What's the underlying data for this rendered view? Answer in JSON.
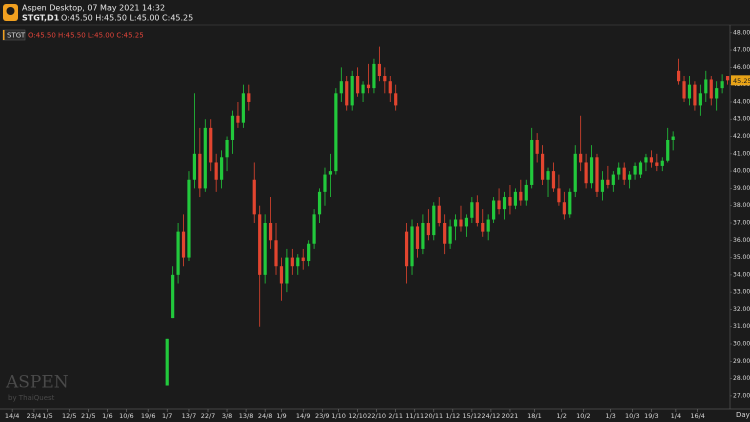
{
  "header": {
    "app": "Aspen Desktop, 07 May 2021 14:32",
    "symbol": "STGT,D1",
    "ohlc": "O:45.50 H:45.50 L:45.00 C:45.25"
  },
  "legend": {
    "symbol": "STGT",
    "ohlc": "O:45.50 H:45.50 L:45.00 C:45.25"
  },
  "watermark": {
    "title": "ASPEN",
    "subtitle": "by ThaiQuest"
  },
  "chart_data": {
    "type": "candlestick",
    "x_label": "Day",
    "up_color": "#22c93c",
    "down_color": "#e2452f",
    "xlim": [
      0,
      268
    ],
    "ylim": [
      26.3,
      48.45
    ],
    "yticks": [
      {
        "value": 27,
        "label": "27.00"
      },
      {
        "value": 28,
        "label": "28.00"
      },
      {
        "value": 29,
        "label": "29.00"
      },
      {
        "value": 30,
        "label": "30.00"
      },
      {
        "value": 31,
        "label": "31.00"
      },
      {
        "value": 32,
        "label": "32.00"
      },
      {
        "value": 33,
        "label": "33.00"
      },
      {
        "value": 34,
        "label": "34.00"
      },
      {
        "value": 35,
        "label": "35.00"
      },
      {
        "value": 36,
        "label": "36.00"
      },
      {
        "value": 37,
        "label": "37.00"
      },
      {
        "value": 38,
        "label": "38.00"
      },
      {
        "value": 39,
        "label": "39.00"
      },
      {
        "value": 40,
        "label": "40.00"
      },
      {
        "value": 41,
        "label": "41.00"
      },
      {
        "value": 42,
        "label": "42.00"
      },
      {
        "value": 43,
        "label": "43.00"
      },
      {
        "value": 44,
        "label": "44.00"
      },
      {
        "value": 45,
        "label": "45.00"
      },
      {
        "value": 46,
        "label": "46.00"
      },
      {
        "value": 47,
        "label": "47.00"
      },
      {
        "value": 48,
        "label": "48.00"
      }
    ],
    "xticks": [
      {
        "value": 3,
        "label": "14/4"
      },
      {
        "value": 11,
        "label": "23/4"
      },
      {
        "value": 16,
        "label": "1/5"
      },
      {
        "value": 24,
        "label": "12/5"
      },
      {
        "value": 31,
        "label": "21/5"
      },
      {
        "value": 38,
        "label": "1/6"
      },
      {
        "value": 45,
        "label": "10/6"
      },
      {
        "value": 53,
        "label": "19/6"
      },
      {
        "value": 60,
        "label": "1/7"
      },
      {
        "value": 68,
        "label": "13/7"
      },
      {
        "value": 75,
        "label": "22/7"
      },
      {
        "value": 82,
        "label": "3/8"
      },
      {
        "value": 89,
        "label": "13/8"
      },
      {
        "value": 96,
        "label": "24/8"
      },
      {
        "value": 102,
        "label": "1/9"
      },
      {
        "value": 110,
        "label": "14/9"
      },
      {
        "value": 117,
        "label": "23/9"
      },
      {
        "value": 123,
        "label": "1/10"
      },
      {
        "value": 130,
        "label": "12/10"
      },
      {
        "value": 137,
        "label": "22/10"
      },
      {
        "value": 144,
        "label": "2/11"
      },
      {
        "value": 151,
        "label": "11/11"
      },
      {
        "value": 158,
        "label": "20/11"
      },
      {
        "value": 165,
        "label": "1/12"
      },
      {
        "value": 172,
        "label": "15/12"
      },
      {
        "value": 179,
        "label": "24/12"
      },
      {
        "value": 186,
        "label": "2021"
      },
      {
        "value": 195,
        "label": "18/1"
      },
      {
        "value": 205,
        "label": "1/2"
      },
      {
        "value": 213,
        "label": "10/2"
      },
      {
        "value": 223,
        "label": "1/3"
      },
      {
        "value": 231,
        "label": "10/3"
      },
      {
        "value": 238,
        "label": "19/3"
      },
      {
        "value": 247,
        "label": "1/4"
      },
      {
        "value": 255,
        "label": "16/4"
      }
    ],
    "x": [
      60,
      62,
      64,
      66,
      68,
      70,
      72,
      74,
      76,
      78,
      80,
      82,
      84,
      86,
      88,
      90,
      92,
      94,
      96,
      98,
      100,
      102,
      104,
      106,
      108,
      110,
      112,
      114,
      116,
      118,
      120,
      122,
      124,
      126,
      128,
      130,
      132,
      134,
      136,
      138,
      140,
      142,
      144,
      148,
      150,
      152,
      154,
      156,
      158,
      160,
      162,
      164,
      166,
      168,
      170,
      172,
      174,
      176,
      178,
      180,
      182,
      184,
      186,
      188,
      190,
      192,
      194,
      196,
      198,
      200,
      202,
      204,
      206,
      208,
      210,
      212,
      214,
      216,
      218,
      220,
      222,
      224,
      226,
      228,
      230,
      232,
      234,
      236,
      238,
      240,
      242,
      244,
      246,
      248,
      250,
      252,
      254,
      256,
      258,
      260,
      262,
      264,
      266
    ],
    "open": [
      27.6,
      31.5,
      34.0,
      36.5,
      35.0,
      39.5,
      41.0,
      39.0,
      42.5,
      40.5,
      39.5,
      40.8,
      41.8,
      43.2,
      42.8,
      44.5,
      39.5,
      37.5,
      34.0,
      37.0,
      36.0,
      34.5,
      33.5,
      35.0,
      34.5,
      35.0,
      34.8,
      35.8,
      37.5,
      38.8,
      39.8,
      40.0,
      44.5,
      45.2,
      43.8,
      45.5,
      44.5,
      45.0,
      44.8,
      46.2,
      45.5,
      45.2,
      44.5,
      36.5,
      34.5,
      36.8,
      35.5,
      37.0,
      36.3,
      38.0,
      37.0,
      35.8,
      36.8,
      37.2,
      36.8,
      37.3,
      38.2,
      37.0,
      36.5,
      37.2,
      38.3,
      37.8,
      38.5,
      38.0,
      38.8,
      38.3,
      39.2,
      41.8,
      41.0,
      39.5,
      40.0,
      39.0,
      38.2,
      37.5,
      38.8,
      41.0,
      40.5,
      39.3,
      40.8,
      38.8,
      39.5,
      39.2,
      39.8,
      40.2,
      39.5,
      39.8,
      39.8,
      40.5,
      40.8,
      40.5,
      40.3,
      40.6,
      41.8,
      45.8,
      45.2,
      44.2,
      45.0,
      43.8,
      44.5,
      45.3,
      44.2,
      44.8,
      45.5
    ],
    "high": [
      30.3,
      34.5,
      37.0,
      37.5,
      40.0,
      44.5,
      42.5,
      43.0,
      43.0,
      41.0,
      41.2,
      42.0,
      43.5,
      44.0,
      45.0,
      45.0,
      40.5,
      38.0,
      37.5,
      38.5,
      37.0,
      35.0,
      35.5,
      35.5,
      35.2,
      35.5,
      36.0,
      37.8,
      39.0,
      40.2,
      41.0,
      44.8,
      46.0,
      45.5,
      45.8,
      46.0,
      45.2,
      46.2,
      46.5,
      47.2,
      46.0,
      45.5,
      45.0,
      37.0,
      37.2,
      37.0,
      37.5,
      37.8,
      38.2,
      38.5,
      37.5,
      37.2,
      37.5,
      38.0,
      37.5,
      38.5,
      38.6,
      37.8,
      37.5,
      38.5,
      39.0,
      38.8,
      39.2,
      39.0,
      39.5,
      39.5,
      42.5,
      42.2,
      41.5,
      40.2,
      40.5,
      39.8,
      38.8,
      39.0,
      41.5,
      43.2,
      41.0,
      41.5,
      41.0,
      40.0,
      40.3,
      40.0,
      40.5,
      40.5,
      40.0,
      40.5,
      40.6,
      41.0,
      41.2,
      41.0,
      40.8,
      42.5,
      42.3,
      46.5,
      45.5,
      45.5,
      45.2,
      45.0,
      45.8,
      45.5,
      45.2,
      45.6,
      45.5
    ],
    "low": [
      27.6,
      31.5,
      33.5,
      34.5,
      34.8,
      39.0,
      38.5,
      38.8,
      40.0,
      38.8,
      39.0,
      40.0,
      41.0,
      42.5,
      42.5,
      43.5,
      37.0,
      31.0,
      33.5,
      35.5,
      34.0,
      32.5,
      33.0,
      34.0,
      34.0,
      34.3,
      34.5,
      35.5,
      37.0,
      38.0,
      38.5,
      39.8,
      44.0,
      43.5,
      43.5,
      44.3,
      44.0,
      44.5,
      44.5,
      45.2,
      44.5,
      44.0,
      43.5,
      33.5,
      34.0,
      35.0,
      35.2,
      36.0,
      36.0,
      36.8,
      35.2,
      35.5,
      36.0,
      36.5,
      36.2,
      37.0,
      36.8,
      36.2,
      36.0,
      37.0,
      37.5,
      37.2,
      37.5,
      37.8,
      38.0,
      38.0,
      39.0,
      40.5,
      39.2,
      38.5,
      38.8,
      38.0,
      37.2,
      37.3,
      38.5,
      40.0,
      39.0,
      39.0,
      38.5,
      38.3,
      39.0,
      38.8,
      39.5,
      39.2,
      39.0,
      39.5,
      39.6,
      40.0,
      40.2,
      40.0,
      40.0,
      40.5,
      41.2,
      45.0,
      44.0,
      43.8,
      43.5,
      43.2,
      44.0,
      43.8,
      43.5,
      44.5,
      45.0
    ],
    "close": [
      30.3,
      34.0,
      36.5,
      35.0,
      39.5,
      41.0,
      39.0,
      42.5,
      40.5,
      39.5,
      40.8,
      41.8,
      43.2,
      42.8,
      44.5,
      44.0,
      37.5,
      34.0,
      37.0,
      36.0,
      34.5,
      33.5,
      35.0,
      34.5,
      35.0,
      34.8,
      35.8,
      37.5,
      38.8,
      39.8,
      40.0,
      44.5,
      45.2,
      43.8,
      45.5,
      44.5,
      45.0,
      44.8,
      46.2,
      45.5,
      45.2,
      44.5,
      43.8,
      34.5,
      36.8,
      35.5,
      37.0,
      36.3,
      38.0,
      37.0,
      35.8,
      36.8,
      37.2,
      36.8,
      37.3,
      38.2,
      37.0,
      36.5,
      37.2,
      38.3,
      37.8,
      38.5,
      38.0,
      38.8,
      38.3,
      39.2,
      41.8,
      41.0,
      39.5,
      40.0,
      39.0,
      38.2,
      37.5,
      38.8,
      41.0,
      40.5,
      39.3,
      40.8,
      38.8,
      39.5,
      39.2,
      39.8,
      40.2,
      39.5,
      39.8,
      40.3,
      40.5,
      40.8,
      40.5,
      40.3,
      40.6,
      41.8,
      42.0,
      45.2,
      44.2,
      45.0,
      43.8,
      44.5,
      45.3,
      44.2,
      44.8,
      45.2,
      45.25
    ]
  }
}
